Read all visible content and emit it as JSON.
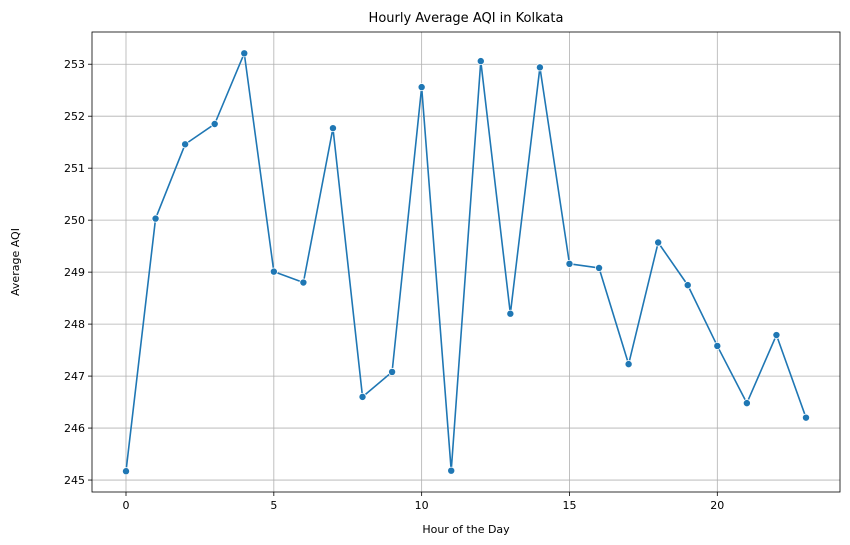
{
  "chart_data": {
    "type": "line",
    "title": "Hourly Average AQI in Kolkata",
    "xlabel": "Hour of the Day",
    "ylabel": "Average AQI",
    "x": [
      0,
      1,
      2,
      3,
      4,
      5,
      6,
      7,
      8,
      9,
      10,
      11,
      12,
      13,
      14,
      15,
      16,
      17,
      18,
      19,
      20,
      21,
      22,
      23
    ],
    "series": [
      {
        "values": [
          245.17,
          250.03,
          251.46,
          251.85,
          253.21,
          249.01,
          248.8,
          251.77,
          246.6,
          247.08,
          252.56,
          245.18,
          253.06,
          248.2,
          252.94,
          249.16,
          249.08,
          247.23,
          249.57,
          248.75,
          247.58,
          246.48,
          247.79,
          246.2
        ],
        "color": "#1f77b4",
        "marker": "circle"
      }
    ],
    "xlim": [
      -1.15,
      24.15
    ],
    "ylim": [
      244.77,
      253.62
    ],
    "xticks": [
      0,
      5,
      10,
      15,
      20
    ],
    "yticks": [
      245,
      246,
      247,
      248,
      249,
      250,
      251,
      252,
      253
    ],
    "grid": true,
    "legend": "none"
  }
}
